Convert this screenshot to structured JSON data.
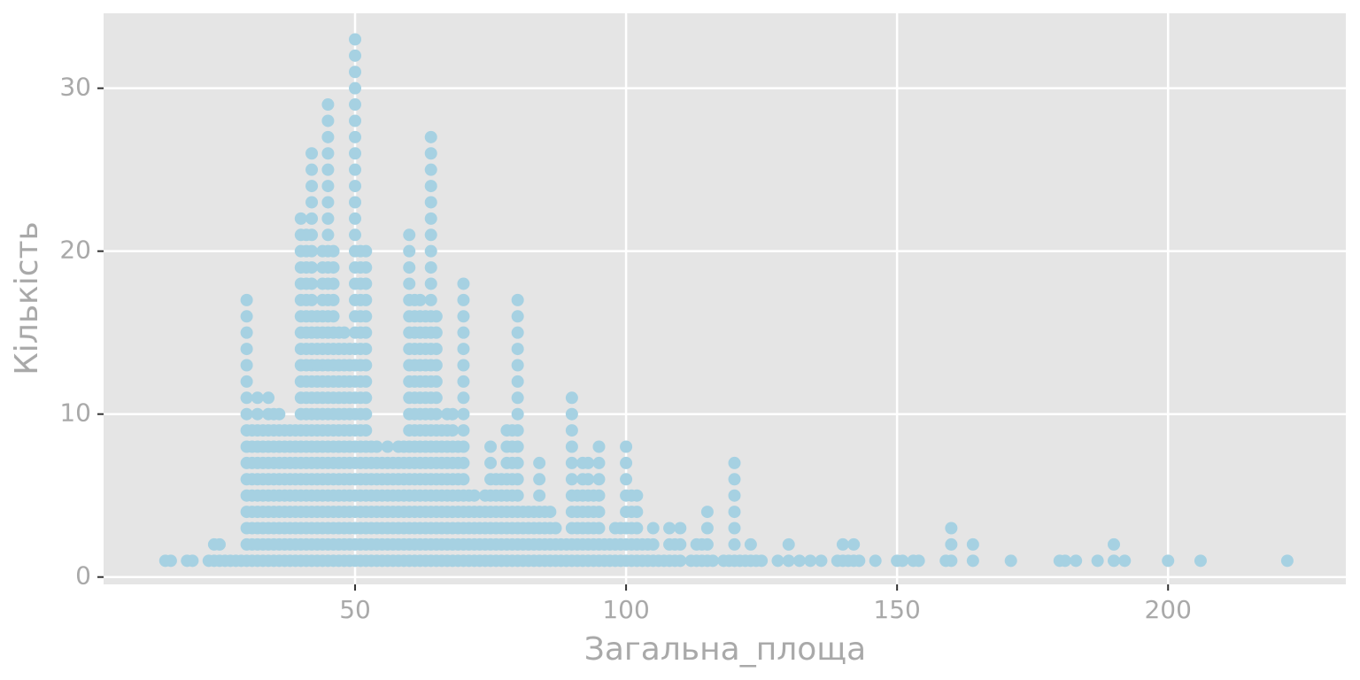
{
  "chart_data": {
    "type": "scatter",
    "x_label": "Загальна_площа",
    "y_label": "Кількість",
    "color": "#a6d1e2",
    "grid": true,
    "xlim": [
      3.6,
      232.8
    ],
    "ylim": [
      -0.45,
      34.6
    ],
    "xticks": [
      50,
      100,
      150,
      200
    ],
    "yticks": [
      0,
      10,
      20,
      30
    ],
    "x": [
      15,
      16,
      19,
      20,
      23,
      24,
      24,
      25,
      25,
      26,
      27,
      28,
      29,
      30,
      30,
      30,
      30,
      30,
      30,
      30,
      30,
      30,
      30,
      30,
      30,
      30,
      30,
      30,
      30,
      30,
      31,
      31,
      31,
      31,
      31,
      31,
      31,
      31,
      31,
      32,
      32,
      32,
      32,
      32,
      32,
      32,
      32,
      32,
      32,
      32,
      33,
      33,
      33,
      33,
      33,
      33,
      33,
      33,
      33,
      34,
      34,
      34,
      34,
      34,
      34,
      34,
      34,
      34,
      34,
      34,
      35,
      35,
      35,
      35,
      35,
      35,
      35,
      35,
      35,
      35,
      36,
      36,
      36,
      36,
      36,
      36,
      36,
      36,
      36,
      36,
      37,
      37,
      37,
      37,
      37,
      37,
      37,
      37,
      37,
      38,
      38,
      38,
      38,
      38,
      38,
      38,
      38,
      38,
      39,
      39,
      39,
      39,
      39,
      39,
      39,
      39,
      39,
      40,
      40,
      40,
      40,
      40,
      40,
      40,
      40,
      40,
      40,
      40,
      40,
      40,
      40,
      40,
      40,
      40,
      40,
      40,
      40,
      40,
      40,
      41,
      41,
      41,
      41,
      41,
      41,
      41,
      41,
      41,
      41,
      41,
      41,
      41,
      41,
      41,
      41,
      41,
      41,
      41,
      41,
      41,
      42,
      42,
      42,
      42,
      42,
      42,
      42,
      42,
      42,
      42,
      42,
      42,
      42,
      42,
      42,
      42,
      42,
      42,
      42,
      42,
      42,
      42,
      42,
      42,
      42,
      42,
      43,
      43,
      43,
      43,
      43,
      43,
      43,
      43,
      43,
      43,
      43,
      43,
      43,
      43,
      43,
      43,
      44,
      44,
      44,
      44,
      44,
      44,
      44,
      44,
      44,
      44,
      44,
      44,
      44,
      44,
      44,
      44,
      44,
      44,
      44,
      44,
      45,
      45,
      45,
      45,
      45,
      45,
      45,
      45,
      45,
      45,
      45,
      45,
      45,
      45,
      45,
      45,
      45,
      45,
      45,
      45,
      45,
      45,
      45,
      45,
      45,
      45,
      45,
      45,
      45,
      46,
      46,
      46,
      46,
      46,
      46,
      46,
      46,
      46,
      46,
      46,
      46,
      46,
      46,
      46,
      46,
      46,
      46,
      46,
      46,
      47,
      47,
      47,
      47,
      47,
      47,
      47,
      47,
      47,
      47,
      47,
      47,
      47,
      47,
      47,
      48,
      48,
      48,
      48,
      48,
      48,
      48,
      48,
      48,
      48,
      48,
      48,
      48,
      48,
      48,
      49,
      49,
      49,
      49,
      49,
      49,
      49,
      49,
      49,
      49,
      49,
      49,
      49,
      49,
      50,
      50,
      50,
      50,
      50,
      50,
      50,
      50,
      50,
      50,
      50,
      50,
      50,
      50,
      50,
      50,
      50,
      50,
      50,
      50,
      50,
      50,
      50,
      50,
      50,
      50,
      50,
      50,
      50,
      50,
      50,
      50,
      50,
      51,
      51,
      51,
      51,
      51,
      51,
      51,
      51,
      51,
      51,
      51,
      51,
      51,
      51,
      51,
      51,
      51,
      51,
      51,
      51,
      52,
      52,
      52,
      52,
      52,
      52,
      52,
      52,
      52,
      52,
      52,
      52,
      52,
      52,
      52,
      52,
      52,
      52,
      52,
      52,
      53,
      53,
      53,
      53,
      53,
      53,
      53,
      53,
      54,
      54,
      54,
      54,
      54,
      54,
      54,
      54,
      55,
      55,
      55,
      55,
      55,
      55,
      55,
      56,
      56,
      56,
      56,
      56,
      56,
      56,
      56,
      57,
      57,
      57,
      57,
      57,
      57,
      57,
      58,
      58,
      58,
      58,
      58,
      58,
      58,
      58,
      59,
      59,
      59,
      59,
      59,
      59,
      59,
      59,
      60,
      60,
      60,
      60,
      60,
      60,
      60,
      60,
      60,
      60,
      60,
      60,
      60,
      60,
      60,
      60,
      60,
      60,
      60,
      60,
      60,
      61,
      61,
      61,
      61,
      61,
      61,
      61,
      61,
      61,
      61,
      61,
      61,
      61,
      61,
      61,
      61,
      61,
      62,
      62,
      62,
      62,
      62,
      62,
      62,
      62,
      62,
      62,
      62,
      62,
      62,
      62,
      62,
      62,
      62,
      63,
      63,
      63,
      63,
      63,
      63,
      63,
      63,
      63,
      63,
      63,
      63,
      63,
      63,
      63,
      63,
      64,
      64,
      64,
      64,
      64,
      64,
      64,
      64,
      64,
      64,
      64,
      64,
      64,
      64,
      64,
      64,
      64,
      64,
      64,
      64,
      64,
      64,
      64,
      64,
      64,
      64,
      64,
      65,
      65,
      65,
      65,
      65,
      65,
      65,
      65,
      65,
      65,
      65,
      65,
      65,
      65,
      65,
      65,
      66,
      66,
      66,
      66,
      66,
      66,
      66,
      66,
      66,
      67,
      67,
      67,
      67,
      67,
      67,
      67,
      67,
      67,
      67,
      68,
      68,
      68,
      68,
      68,
      68,
      68,
      68,
      68,
      68,
      69,
      69,
      69,
      69,
      69,
      69,
      69,
      69,
      70,
      70,
      70,
      70,
      70,
      70,
      70,
      70,
      70,
      70,
      70,
      70,
      70,
      70,
      70,
      70,
      70,
      70,
      71,
      71,
      71,
      71,
      71,
      72,
      72,
      72,
      72,
      72,
      73,
      73,
      73,
      73,
      74,
      74,
      74,
      74,
      74,
      75,
      75,
      75,
      75,
      75,
      75,
      75,
      75,
      76,
      76,
      76,
      76,
      76,
      76,
      77,
      77,
      77,
      77,
      77,
      77,
      78,
      78,
      78,
      78,
      78,
      78,
      78,
      78,
      78,
      79,
      79,
      79,
      79,
      79,
      79,
      79,
      79,
      79,
      80,
      80,
      80,
      80,
      80,
      80,
      80,
      80,
      80,
      80,
      80,
      80,
      80,
      80,
      80,
      80,
      80,
      81,
      81,
      81,
      81,
      82,
      82,
      82,
      82,
      83,
      83,
      83,
      83,
      84,
      84,
      84,
      84,
      84,
      84,
      84,
      85,
      85,
      85,
      85,
      86,
      86,
      86,
      86,
      87,
      87,
      87,
      88,
      88,
      89,
      89,
      90,
      90,
      90,
      90,
      90,
      90,
      90,
      90,
      90,
      90,
      90,
      91,
      91,
      91,
      91,
      91,
      92,
      92,
      92,
      92,
      92,
      92,
      92,
      93,
      93,
      93,
      93,
      93,
      93,
      93,
      94,
      94,
      94,
      94,
      94,
      95,
      95,
      95,
      95,
      95,
      95,
      95,
      95,
      96,
      96,
      97,
      97,
      98,
      98,
      98,
      99,
      99,
      99,
      100,
      100,
      100,
      100,
      100,
      100,
      100,
      100,
      101,
      101,
      101,
      101,
      101,
      102,
      102,
      102,
      102,
      102,
      103,
      103,
      104,
      104,
      105,
      105,
      105,
      106,
      107,
      108,
      108,
      108,
      109,
      109,
      110,
      110,
      110,
      112,
      113,
      113,
      114,
      114,
      115,
      115,
      115,
      115,
      116,
      118,
      119,
      120,
      120,
      120,
      120,
      120,
      120,
      120,
      121,
      122,
      123,
      123,
      124,
      125,
      128,
      130,
      130,
      132,
      134,
      136,
      139,
      140,
      140,
      141,
      142,
      142,
      143,
      146,
      150,
      151,
      153,
      154,
      159,
      160,
      160,
      160,
      164,
      164,
      171,
      180,
      181,
      183,
      187,
      190,
      190,
      192,
      200,
      206,
      222
    ],
    "values": [
      1,
      1,
      1,
      1,
      1,
      1,
      2,
      1,
      2,
      1,
      1,
      1,
      1,
      1,
      2,
      3,
      4,
      5,
      6,
      7,
      8,
      9,
      10,
      11,
      12,
      13,
      14,
      15,
      16,
      17,
      1,
      2,
      3,
      4,
      5,
      6,
      7,
      8,
      9,
      1,
      2,
      3,
      4,
      5,
      6,
      7,
      8,
      9,
      10,
      11,
      1,
      2,
      3,
      4,
      5,
      6,
      7,
      8,
      9,
      1,
      2,
      3,
      4,
      5,
      6,
      7,
      8,
      9,
      10,
      11,
      1,
      2,
      3,
      4,
      5,
      6,
      7,
      8,
      9,
      10,
      1,
      2,
      3,
      4,
      5,
      6,
      7,
      8,
      9,
      10,
      1,
      2,
      3,
      4,
      5,
      6,
      7,
      8,
      9,
      1,
      2,
      3,
      4,
      5,
      6,
      7,
      8,
      9,
      1,
      2,
      3,
      4,
      5,
      6,
      7,
      8,
      9,
      1,
      2,
      3,
      4,
      5,
      6,
      7,
      8,
      9,
      10,
      11,
      12,
      13,
      14,
      15,
      16,
      17,
      18,
      19,
      20,
      21,
      22,
      1,
      2,
      3,
      4,
      5,
      6,
      7,
      8,
      9,
      10,
      11,
      12,
      13,
      14,
      15,
      16,
      17,
      18,
      19,
      20,
      21,
      1,
      2,
      3,
      4,
      5,
      6,
      7,
      8,
      9,
      10,
      11,
      12,
      13,
      14,
      15,
      16,
      17,
      18,
      19,
      20,
      21,
      22,
      23,
      24,
      25,
      26,
      1,
      2,
      3,
      4,
      5,
      6,
      7,
      8,
      9,
      10,
      11,
      12,
      13,
      14,
      15,
      16,
      1,
      2,
      3,
      4,
      5,
      6,
      7,
      8,
      9,
      10,
      11,
      12,
      13,
      14,
      15,
      16,
      17,
      18,
      19,
      20,
      1,
      2,
      3,
      4,
      5,
      6,
      7,
      8,
      9,
      10,
      11,
      12,
      13,
      14,
      15,
      16,
      17,
      18,
      19,
      20,
      21,
      22,
      23,
      24,
      25,
      26,
      27,
      28,
      29,
      1,
      2,
      3,
      4,
      5,
      6,
      7,
      8,
      9,
      10,
      11,
      12,
      13,
      14,
      15,
      16,
      17,
      18,
      19,
      20,
      1,
      2,
      3,
      4,
      5,
      6,
      7,
      8,
      9,
      10,
      11,
      12,
      13,
      14,
      15,
      1,
      2,
      3,
      4,
      5,
      6,
      7,
      8,
      9,
      10,
      11,
      12,
      13,
      14,
      15,
      1,
      2,
      3,
      4,
      5,
      6,
      7,
      8,
      9,
      10,
      11,
      12,
      13,
      14,
      1,
      2,
      3,
      4,
      5,
      6,
      7,
      8,
      9,
      10,
      11,
      12,
      13,
      14,
      15,
      16,
      17,
      18,
      19,
      20,
      21,
      22,
      23,
      24,
      25,
      26,
      27,
      28,
      29,
      30,
      31,
      32,
      33,
      1,
      2,
      3,
      4,
      5,
      6,
      7,
      8,
      9,
      10,
      11,
      12,
      13,
      14,
      15,
      16,
      17,
      18,
      19,
      20,
      1,
      2,
      3,
      4,
      5,
      6,
      7,
      8,
      9,
      10,
      11,
      12,
      13,
      14,
      15,
      16,
      17,
      18,
      19,
      20,
      1,
      2,
      3,
      4,
      5,
      6,
      7,
      8,
      1,
      2,
      3,
      4,
      5,
      6,
      7,
      8,
      1,
      2,
      3,
      4,
      5,
      6,
      7,
      1,
      2,
      3,
      4,
      5,
      6,
      7,
      8,
      1,
      2,
      3,
      4,
      5,
      6,
      7,
      1,
      2,
      3,
      4,
      5,
      6,
      7,
      8,
      1,
      2,
      3,
      4,
      5,
      6,
      7,
      8,
      1,
      2,
      3,
      4,
      5,
      6,
      7,
      8,
      9,
      10,
      11,
      12,
      13,
      14,
      15,
      16,
      17,
      18,
      19,
      20,
      21,
      1,
      2,
      3,
      4,
      5,
      6,
      7,
      8,
      9,
      10,
      11,
      12,
      13,
      14,
      15,
      16,
      17,
      1,
      2,
      3,
      4,
      5,
      6,
      7,
      8,
      9,
      10,
      11,
      12,
      13,
      14,
      15,
      16,
      17,
      1,
      2,
      3,
      4,
      5,
      6,
      7,
      8,
      9,
      10,
      11,
      12,
      13,
      14,
      15,
      16,
      1,
      2,
      3,
      4,
      5,
      6,
      7,
      8,
      9,
      10,
      11,
      12,
      13,
      14,
      15,
      16,
      17,
      18,
      19,
      20,
      21,
      22,
      23,
      24,
      25,
      26,
      27,
      1,
      2,
      3,
      4,
      5,
      6,
      7,
      8,
      9,
      10,
      11,
      12,
      13,
      14,
      15,
      16,
      1,
      2,
      3,
      4,
      5,
      6,
      7,
      8,
      9,
      1,
      2,
      3,
      4,
      5,
      6,
      7,
      8,
      9,
      10,
      1,
      2,
      3,
      4,
      5,
      6,
      7,
      8,
      9,
      10,
      1,
      2,
      3,
      4,
      5,
      6,
      7,
      8,
      1,
      2,
      3,
      4,
      5,
      6,
      7,
      8,
      9,
      10,
      11,
      12,
      13,
      14,
      15,
      16,
      17,
      18,
      1,
      2,
      3,
      4,
      5,
      1,
      2,
      3,
      4,
      5,
      1,
      2,
      3,
      4,
      1,
      2,
      3,
      4,
      5,
      1,
      2,
      3,
      4,
      5,
      6,
      7,
      8,
      1,
      2,
      3,
      4,
      5,
      6,
      1,
      2,
      3,
      4,
      5,
      6,
      1,
      2,
      3,
      4,
      5,
      6,
      7,
      8,
      9,
      1,
      2,
      3,
      4,
      5,
      6,
      7,
      8,
      9,
      1,
      2,
      3,
      4,
      5,
      6,
      7,
      8,
      9,
      10,
      11,
      12,
      13,
      14,
      15,
      16,
      17,
      1,
      2,
      3,
      4,
      1,
      2,
      3,
      4,
      1,
      2,
      3,
      4,
      1,
      2,
      3,
      4,
      5,
      6,
      7,
      1,
      2,
      3,
      4,
      1,
      2,
      3,
      4,
      1,
      2,
      3,
      1,
      2,
      1,
      2,
      1,
      2,
      3,
      4,
      5,
      6,
      7,
      8,
      9,
      10,
      11,
      1,
      2,
      3,
      4,
      5,
      1,
      2,
      3,
      4,
      5,
      6,
      7,
      1,
      2,
      3,
      4,
      5,
      6,
      7,
      1,
      2,
      3,
      4,
      5,
      1,
      2,
      3,
      4,
      5,
      6,
      7,
      8,
      1,
      2,
      1,
      2,
      1,
      2,
      3,
      1,
      2,
      3,
      1,
      2,
      3,
      4,
      5,
      6,
      7,
      8,
      1,
      2,
      3,
      4,
      5,
      1,
      2,
      3,
      4,
      5,
      1,
      2,
      1,
      2,
      1,
      2,
      3,
      1,
      1,
      1,
      2,
      3,
      1,
      2,
      1,
      2,
      3,
      1,
      1,
      2,
      1,
      2,
      1,
      2,
      3,
      4,
      1,
      1,
      1,
      1,
      2,
      3,
      4,
      5,
      6,
      7,
      1,
      1,
      1,
      2,
      1,
      1,
      1,
      1,
      2,
      1,
      1,
      1,
      1,
      1,
      2,
      1,
      1,
      2,
      1,
      1,
      1,
      1,
      1,
      1,
      1,
      1,
      2,
      3,
      1,
      2,
      1,
      1,
      1,
      1,
      1,
      1,
      2,
      1,
      1,
      1,
      1
    ]
  }
}
